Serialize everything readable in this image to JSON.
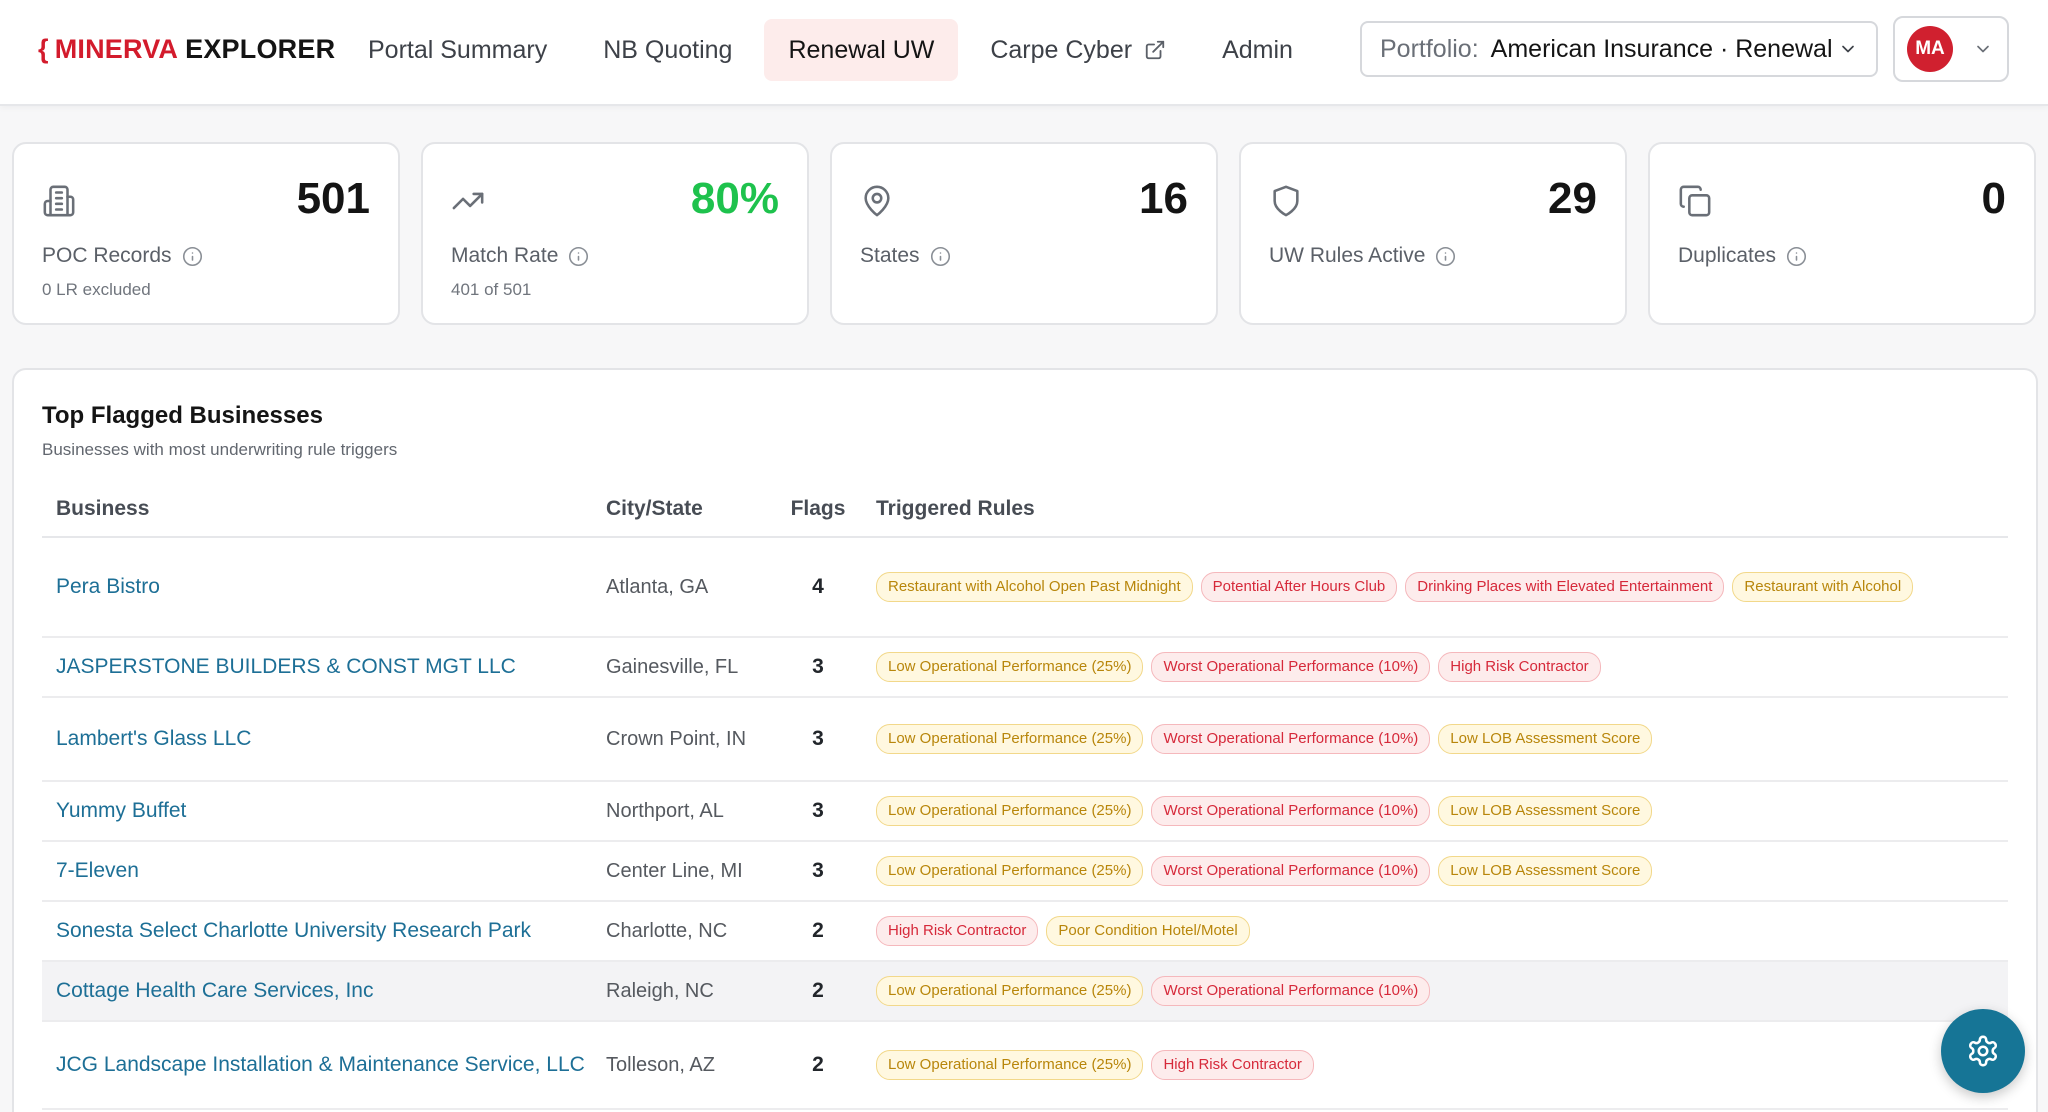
{
  "header": {
    "logo": {
      "brace": "{",
      "part1": "MINERVA",
      "part2": "EXPLORER"
    },
    "tabs": [
      {
        "label": "Portal Summary",
        "active": false
      },
      {
        "label": "NB Quoting",
        "active": false
      },
      {
        "label": "Renewal UW",
        "active": true
      },
      {
        "label": "Carpe Cyber",
        "active": false,
        "icon": "external-link-icon"
      },
      {
        "label": "Admin",
        "active": false
      }
    ],
    "portfolio": {
      "label": "Portfolio:",
      "value": "American Insurance · Renewal"
    },
    "user": {
      "initials": "MA"
    }
  },
  "stats": [
    {
      "icon": "building-icon",
      "value": "501",
      "label": "POC Records",
      "sub": "0 LR excluded",
      "value_color": "#141414"
    },
    {
      "icon": "trending-up-icon",
      "value": "80%",
      "label": "Match Rate",
      "sub": "401 of 501",
      "value_color": "#1ec24d"
    },
    {
      "icon": "map-pin-icon",
      "value": "16",
      "label": "States",
      "sub": ""
    },
    {
      "icon": "shield-icon",
      "value": "29",
      "label": "UW Rules Active",
      "sub": ""
    },
    {
      "icon": "copy-icon",
      "value": "0",
      "label": "Duplicates",
      "sub": ""
    }
  ],
  "flagged": {
    "title": "Top Flagged Businesses",
    "subtitle": "Businesses with most underwriting rule triggers",
    "columns": {
      "business": "Business",
      "city": "City/State",
      "flags": "Flags",
      "rules": "Triggered Rules"
    },
    "rows": [
      {
        "business": "Pera Bistro",
        "city": "Atlanta, GA",
        "flags": "4",
        "rules": [
          {
            "text": "Restaurant with Alcohol Open Past Midnight",
            "tone": "amber"
          },
          {
            "text": "Potential After Hours Club",
            "tone": "red"
          },
          {
            "text": "Drinking Places with Elevated Entertainment",
            "tone": "red"
          },
          {
            "text": "Restaurant with Alcohol",
            "tone": "amber"
          }
        ]
      },
      {
        "business": "JASPERSTONE BUILDERS & CONST MGT LLC",
        "city": "Gainesville, FL",
        "flags": "3",
        "rules": [
          {
            "text": "Low Operational Performance (25%)",
            "tone": "amber"
          },
          {
            "text": "Worst Operational Performance (10%)",
            "tone": "red"
          },
          {
            "text": "High Risk Contractor",
            "tone": "red"
          }
        ]
      },
      {
        "business": "Lambert's Glass LLC",
        "city": "Crown Point, IN",
        "flags": "3",
        "rules": [
          {
            "text": "Low Operational Performance (25%)",
            "tone": "amber"
          },
          {
            "text": "Worst Operational Performance (10%)",
            "tone": "red"
          },
          {
            "text": "Low LOB Assessment Score",
            "tone": "amber"
          }
        ]
      },
      {
        "business": "Yummy Buffet",
        "city": "Northport, AL",
        "flags": "3",
        "rules": [
          {
            "text": "Low Operational Performance (25%)",
            "tone": "amber"
          },
          {
            "text": "Worst Operational Performance (10%)",
            "tone": "red"
          },
          {
            "text": "Low LOB Assessment Score",
            "tone": "amber"
          }
        ]
      },
      {
        "business": "7-Eleven",
        "city": "Center Line, MI",
        "flags": "3",
        "rules": [
          {
            "text": "Low Operational Performance (25%)",
            "tone": "amber"
          },
          {
            "text": "Worst Operational Performance (10%)",
            "tone": "red"
          },
          {
            "text": "Low LOB Assessment Score",
            "tone": "amber"
          }
        ]
      },
      {
        "business": "Sonesta Select Charlotte University Research Park",
        "city": "Charlotte, NC",
        "flags": "2",
        "rules": [
          {
            "text": "High Risk Contractor",
            "tone": "red"
          },
          {
            "text": "Poor Condition Hotel/Motel",
            "tone": "amber"
          }
        ]
      },
      {
        "business": "Cottage Health Care Services, Inc",
        "city": "Raleigh, NC",
        "flags": "2",
        "hover": true,
        "rules": [
          {
            "text": "Low Operational Performance (25%)",
            "tone": "amber"
          },
          {
            "text": "Worst Operational Performance (10%)",
            "tone": "red"
          }
        ]
      },
      {
        "business": "JCG Landscape Installation & Maintenance Service, LLC",
        "city": "Tolleson, AZ",
        "flags": "2",
        "rules": [
          {
            "text": "Low Operational Performance (25%)",
            "tone": "amber"
          },
          {
            "text": "High Risk Contractor",
            "tone": "red"
          }
        ]
      }
    ]
  },
  "fab": {
    "icon": "gear-icon"
  }
}
